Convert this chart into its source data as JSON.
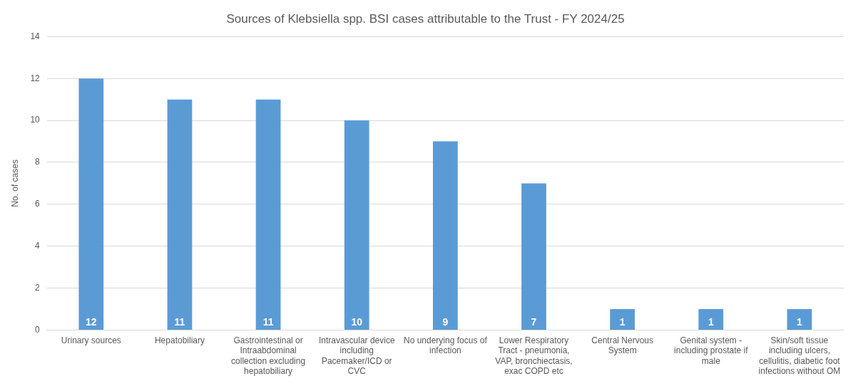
{
  "chart_data": {
    "type": "bar",
    "title": "Sources of Klebsiella spp. BSI cases attributable to the Trust - FY 2024/25",
    "ylabel": "No. of cases",
    "categories": [
      "Urinary sources",
      "Hepatobiliary",
      "Gastrointestinal or Intraabdominal collection excluding hepatobiliary",
      "Intravascular device including Pacemaker/ICD or CVC",
      "No underying focus of infection",
      "Lower Respiratory Tract - pneumonia, VAP, bronchiectasis, exac COPD etc",
      "Central Nervous System",
      "Genital system - including prostate if male",
      "Skin/soft tissue including ulcers, cellulitis, diabetic foot infections without OM"
    ],
    "values": [
      12,
      11,
      11,
      10,
      9,
      7,
      1,
      1,
      1
    ],
    "color": "#5b9bd5",
    "ylim": [
      0,
      14
    ],
    "yticks": [
      0,
      2,
      4,
      6,
      8,
      10,
      12,
      14
    ],
    "grid": "y",
    "data_labels": true,
    "legend": false
  }
}
